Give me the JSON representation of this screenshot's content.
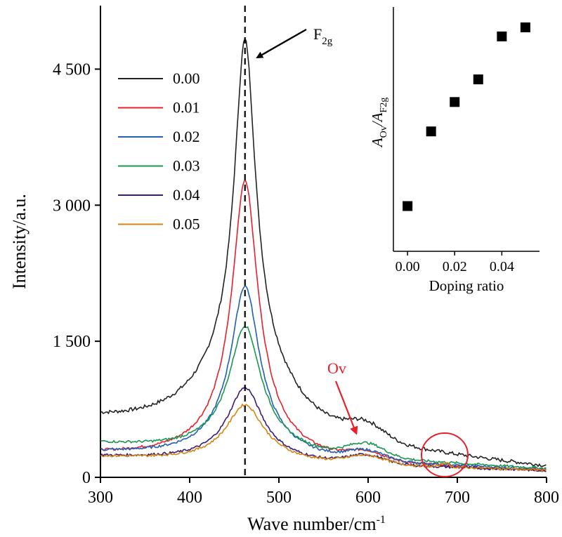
{
  "chart_data": [
    {
      "type": "line",
      "xlabel_main": "Wave number/cm",
      "xlabel_sup": "-1",
      "ylabel": "Intensity/a.u.",
      "xlim": [
        300,
        800
      ],
      "ylim": [
        0,
        5200
      ],
      "xticks": [
        300,
        400,
        500,
        600,
        700,
        800
      ],
      "yticks": [
        0,
        1500,
        3000,
        4500
      ],
      "ytick_labels": [
        "0",
        "1 500",
        "3 000",
        "4 500"
      ],
      "grid": false,
      "legend_placement": "upper-left",
      "series": [
        {
          "name": "0.00",
          "color": "#222222",
          "peak": 4830,
          "baseline_left": 590,
          "baseline_right": 95,
          "shoulder": 450
        },
        {
          "name": "0.01",
          "color": "#e8202a",
          "peak": 3280,
          "baseline_left": 250,
          "baseline_right": 60,
          "shoulder": 250
        },
        {
          "name": "0.02",
          "color": "#1f5fb4",
          "peak": 2110,
          "baseline_left": 270,
          "baseline_right": 80,
          "shoulder": 280
        },
        {
          "name": "0.03",
          "color": "#1a9650",
          "peak": 1670,
          "baseline_left": 370,
          "baseline_right": 90,
          "shoulder": 400
        },
        {
          "name": "0.04",
          "color": "#3b1a7a",
          "peak": 990,
          "baseline_left": 230,
          "baseline_right": 70,
          "shoulder": 260
        },
        {
          "name": "0.05",
          "color": "#d4860f",
          "peak": 800,
          "baseline_left": 225,
          "baseline_right": 75,
          "shoulder": 250
        }
      ],
      "annotations": {
        "peak_line_x": 462,
        "f2g_label": "F",
        "f2g_sub": "2g",
        "ov_label": "Ov",
        "ov_color": "#e8202a"
      }
    },
    {
      "type": "scatter",
      "xlabel": "Doping ratio",
      "ylabel_parts": [
        "A",
        "Ov",
        "/A",
        "F2g"
      ],
      "x": [
        0.0,
        0.01,
        0.02,
        0.03,
        0.04,
        0.05
      ],
      "y": [
        0.2,
        0.53,
        0.66,
        0.76,
        0.95,
        0.99
      ],
      "xticks": [
        0.0,
        0.02,
        0.04
      ],
      "xtick_labels": [
        "0.00",
        "0.02",
        "0.04"
      ],
      "xlim": [
        -0.006,
        0.056
      ],
      "ylim": [
        0,
        1.08
      ],
      "marker": "square",
      "marker_color": "#000000"
    }
  ]
}
